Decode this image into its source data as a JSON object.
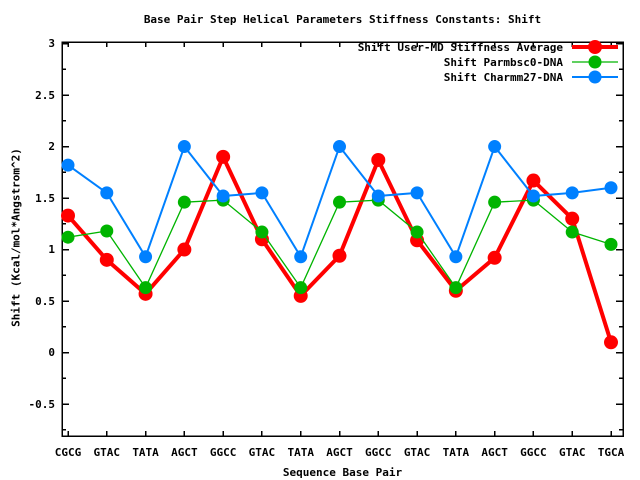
{
  "chart_data": {
    "type": "line",
    "title": "Base Pair Step Helical Parameters Stiffness Constants: Shift",
    "xlabel": "Sequence Base Pair",
    "ylabel": "Shift (Kcal/mol*Angstrom^2)",
    "categories": [
      "CGCG",
      "GTAC",
      "TATA",
      "AGCT",
      "GGCC",
      "GTAC",
      "TATA",
      "AGCT",
      "GGCC",
      "GTAC",
      "TATA",
      "AGCT",
      "GGCC",
      "GTAC",
      "TGCA"
    ],
    "series": [
      {
        "name": "Shift User-MD Stiffness Average",
        "color": "#ff0000",
        "line_width": 4,
        "marker_radius": 7,
        "values": [
          1.33,
          0.9,
          0.57,
          1.0,
          1.9,
          1.1,
          0.55,
          0.94,
          1.87,
          1.09,
          0.6,
          0.92,
          1.67,
          1.3,
          0.1
        ]
      },
      {
        "name": "Shift Parmbsc0-DNA",
        "color": "#00b400",
        "line_width": 1.3,
        "marker_radius": 6.5,
        "values": [
          1.12,
          1.18,
          0.63,
          1.46,
          1.48,
          1.17,
          0.63,
          1.46,
          1.48,
          1.17,
          0.63,
          1.46,
          1.48,
          1.17,
          1.05
        ]
      },
      {
        "name": "Shift Charmm27-DNA",
        "color": "#0080ff",
        "line_width": 2,
        "marker_radius": 6.5,
        "values": [
          1.82,
          1.55,
          0.93,
          2.0,
          1.52,
          1.55,
          0.93,
          2.0,
          1.52,
          1.55,
          0.93,
          2.0,
          1.52,
          1.55,
          1.6
        ]
      }
    ],
    "yticks": [
      {
        "value": 3,
        "label": "3"
      },
      {
        "value": 2.5,
        "label": "2.5"
      },
      {
        "value": 2,
        "label": "2"
      },
      {
        "value": 1.5,
        "label": "1.5"
      },
      {
        "value": 1,
        "label": "1"
      },
      {
        "value": 0.5,
        "label": "0.5"
      },
      {
        "value": 0,
        "label": "0"
      },
      {
        "value": -0.5,
        "label": "-0.5"
      }
    ],
    "minor_yticks": [
      2.75,
      2.25,
      1.75,
      1.25,
      0.75,
      0.25,
      -0.25,
      -0.75
    ],
    "ylim": [
      -0.81,
      3.015
    ],
    "grid": false,
    "legend_position": "top-right-inside",
    "border_color": "#000000",
    "text_color": "#000000",
    "background_color": "#ffffff"
  }
}
